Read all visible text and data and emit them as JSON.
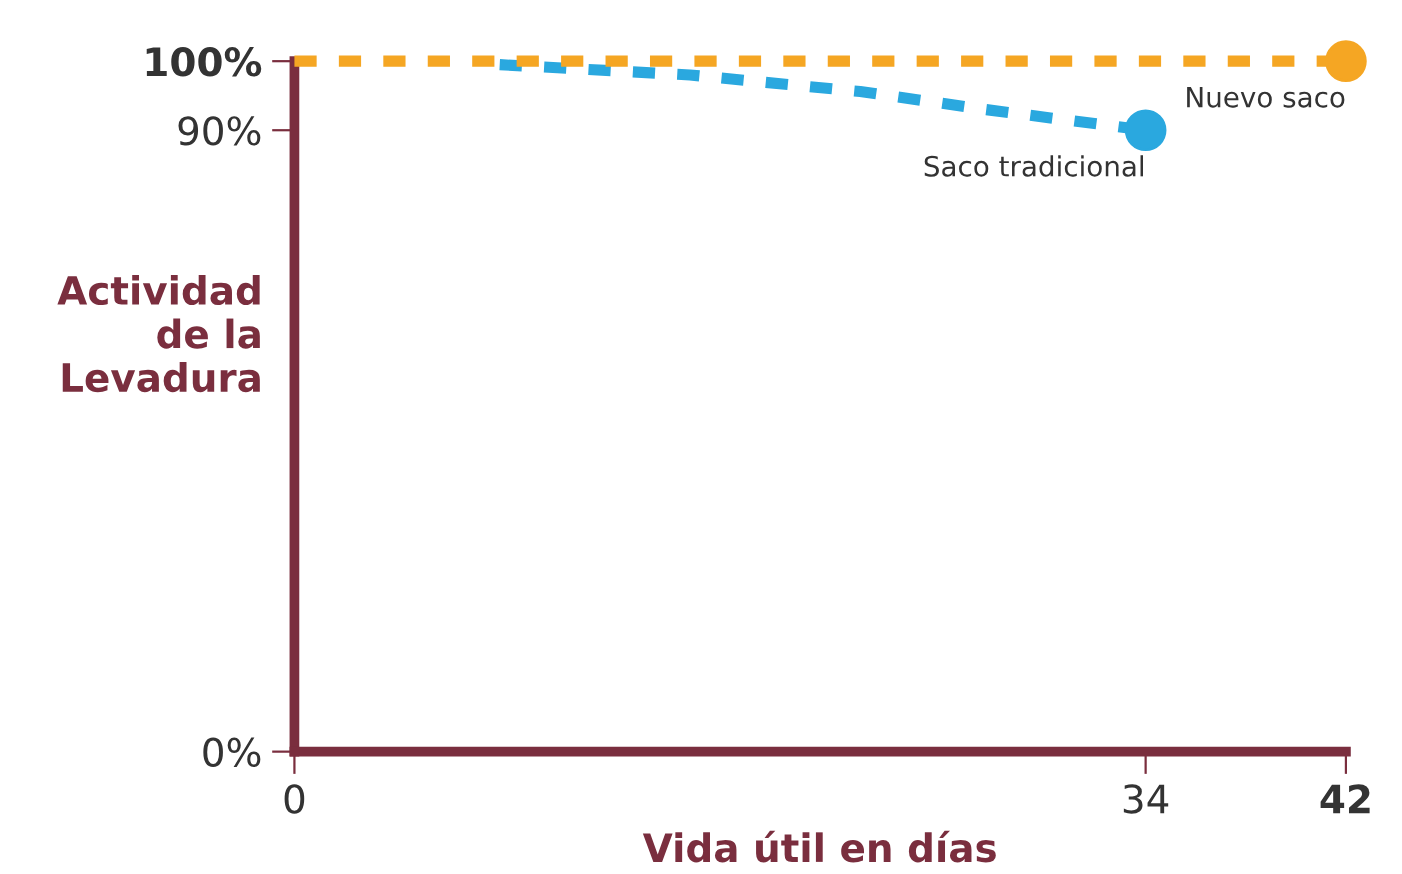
{
  "chart_data": {
    "type": "line",
    "xlabel": "Vida útil en días",
    "ylabel": "Actividad\nde la\nLevadura",
    "xlim": [
      0,
      42
    ],
    "ylim": [
      0,
      100
    ],
    "xticks": [
      0,
      34,
      {
        "value": 42,
        "label": "42"
      }
    ],
    "yticks": [
      {
        "value": 0,
        "label": "0%"
      },
      {
        "value": 90,
        "label": "90%"
      },
      {
        "value": 100,
        "label": "100%"
      }
    ],
    "line_style": "dashed",
    "grid": false,
    "legend": false,
    "series": [
      {
        "name": "Nuevo saco",
        "color": "#f5a623",
        "x": [
          0,
          42
        ],
        "values": [
          100,
          100
        ]
      },
      {
        "name": "Saco tradicional",
        "color": "#2aa8df",
        "x": [
          8.2,
          15.8,
          22.6,
          27.6,
          34
        ],
        "values": [
          99.5,
          98.0,
          95.6,
          93.0,
          90
        ]
      }
    ]
  }
}
